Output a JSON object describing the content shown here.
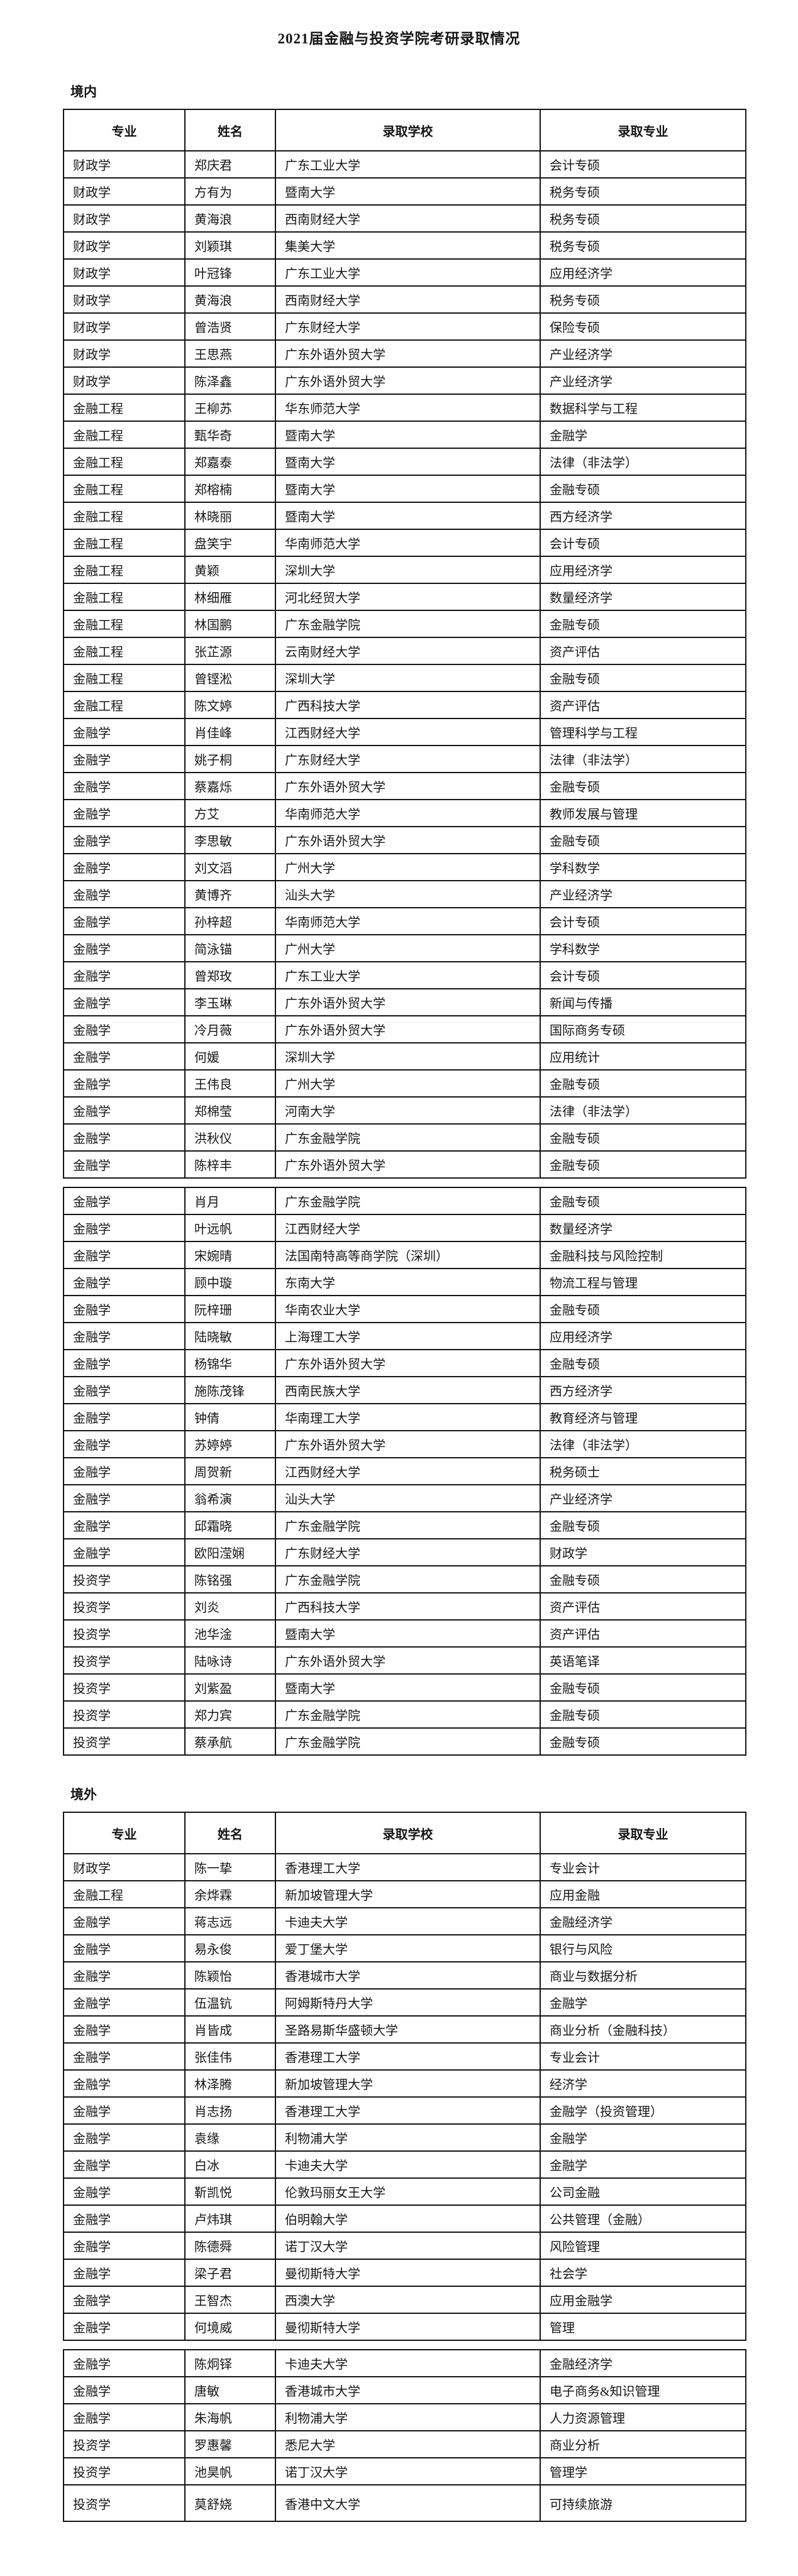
{
  "title": "2021届金融与投资学院考研录取情况",
  "sections": [
    {
      "label": "境内",
      "columns": [
        "专业",
        "姓名",
        "录取学校",
        "录取专业"
      ],
      "tables": [
        {
          "rows": [
            [
              "财政学",
              "郑庆君",
              "广东工业大学",
              "会计专硕"
            ],
            [
              "财政学",
              "方有为",
              "暨南大学",
              "税务专硕"
            ],
            [
              "财政学",
              "黄海浪",
              "西南财经大学",
              "税务专硕"
            ],
            [
              "财政学",
              "刘颖琪",
              "集美大学",
              "税务专硕"
            ],
            [
              "财政学",
              "叶冠锋",
              "广东工业大学",
              "应用经济学"
            ],
            [
              "财政学",
              "黄海浪",
              "西南财经大学",
              "税务专硕"
            ],
            [
              "财政学",
              "曾浩贤",
              "广东财经大学",
              "保险专硕"
            ],
            [
              "财政学",
              "王思燕",
              "广东外语外贸大学",
              "产业经济学"
            ],
            [
              "财政学",
              "陈泽鑫",
              "广东外语外贸大学",
              "产业经济学"
            ],
            [
              "金融工程",
              "王柳苏",
              "华东师范大学",
              "数据科学与工程"
            ],
            [
              "金融工程",
              "甄华奇",
              "暨南大学",
              "金融学"
            ],
            [
              "金融工程",
              "郑嘉泰",
              "暨南大学",
              "法律（非法学）"
            ],
            [
              "金融工程",
              "郑榕楠",
              "暨南大学",
              "金融专硕"
            ],
            [
              "金融工程",
              "林晓丽",
              "暨南大学",
              "西方经济学"
            ],
            [
              "金融工程",
              "盘笑宇",
              "华南师范大学",
              "会计专硕"
            ],
            [
              "金融工程",
              "黄颖",
              "深圳大学",
              "应用经济学"
            ],
            [
              "金融工程",
              "林细雁",
              "河北经贸大学",
              "数量经济学"
            ],
            [
              "金融工程",
              "林国鹏",
              "广东金融学院",
              "金融专硕"
            ],
            [
              "金融工程",
              "张芷源",
              "云南财经大学",
              "资产评估"
            ],
            [
              "金融工程",
              "曾铿淞",
              "深圳大学",
              "金融专硕"
            ],
            [
              "金融工程",
              "陈文婷",
              "广西科技大学",
              "资产评估"
            ],
            [
              "金融学",
              "肖佳峰",
              "江西财经大学",
              "管理科学与工程"
            ],
            [
              "金融学",
              "姚子桐",
              "广东财经大学",
              "法律（非法学）"
            ],
            [
              "金融学",
              "蔡嘉烁",
              "广东外语外贸大学",
              "金融专硕"
            ],
            [
              "金融学",
              "方艾",
              "华南师范大学",
              "教师发展与管理"
            ],
            [
              "金融学",
              "李思敏",
              "广东外语外贸大学",
              "金融专硕"
            ],
            [
              "金融学",
              "刘文滔",
              "广州大学",
              "学科数学"
            ],
            [
              "金融学",
              "黄博齐",
              "汕头大学",
              "产业经济学"
            ],
            [
              "金融学",
              "孙梓超",
              "华南师范大学",
              "会计专硕"
            ],
            [
              "金融学",
              "简泳锚",
              "广州大学",
              "学科数学"
            ],
            [
              "金融学",
              "曾郑玫",
              "广东工业大学",
              "会计专硕"
            ],
            [
              "金融学",
              "李玉琳",
              "广东外语外贸大学",
              "新闻与传播"
            ],
            [
              "金融学",
              "冷月薇",
              "广东外语外贸大学",
              "国际商务专硕"
            ],
            [
              "金融学",
              "何媛",
              "深圳大学",
              "应用统计"
            ],
            [
              "金融学",
              "王伟良",
              "广州大学",
              "金融专硕"
            ],
            [
              "金融学",
              "郑棉莹",
              "河南大学",
              "法律（非法学）"
            ],
            [
              "金融学",
              "洪秋仪",
              "广东金融学院",
              "金融专硕"
            ],
            [
              "金融学",
              "陈梓丰",
              "广东外语外贸大学",
              "金融专硕"
            ]
          ]
        },
        {
          "rows": [
            [
              "金融学",
              "肖月",
              "广东金融学院",
              "金融专硕"
            ],
            [
              "金融学",
              "叶远帆",
              "江西财经大学",
              "数量经济学"
            ],
            [
              "金融学",
              "宋婉晴",
              "法国南特高等商学院（深圳）",
              "金融科技与风险控制"
            ],
            [
              "金融学",
              "顾中璇",
              "东南大学",
              "物流工程与管理"
            ],
            [
              "金融学",
              "阮梓珊",
              "华南农业大学",
              "金融专硕"
            ],
            [
              "金融学",
              "陆晓敏",
              "上海理工大学",
              "应用经济学"
            ],
            [
              "金融学",
              "杨锦华",
              "广东外语外贸大学",
              "金融专硕"
            ],
            [
              "金融学",
              "施陈茂锋",
              "西南民族大学",
              "西方经济学"
            ],
            [
              "金融学",
              "钟倩",
              "华南理工大学",
              "教育经济与管理"
            ],
            [
              "金融学",
              "苏婷婷",
              "广东外语外贸大学",
              "法律（非法学）"
            ],
            [
              "金融学",
              "周贺新",
              "江西财经大学",
              "税务硕士"
            ],
            [
              "金融学",
              "翁希演",
              "汕头大学",
              "产业经济学"
            ],
            [
              "金融学",
              "邱霜晓",
              "广东金融学院",
              "金融专硕"
            ],
            [
              "金融学",
              "欧阳滢娴",
              "广东财经大学",
              "财政学"
            ],
            [
              "投资学",
              "陈铭强",
              "广东金融学院",
              "金融专硕"
            ],
            [
              "投资学",
              "刘炎",
              "广西科技大学",
              "资产评估"
            ],
            [
              "投资学",
              "池华淦",
              "暨南大学",
              "资产评估"
            ],
            [
              "投资学",
              "陆咏诗",
              "广东外语外贸大学",
              "英语笔译"
            ],
            [
              "投资学",
              "刘紫盈",
              "暨南大学",
              "金融专硕"
            ],
            [
              "投资学",
              "郑力宾",
              "广东金融学院",
              "金融专硕"
            ],
            [
              "投资学",
              "蔡承航",
              "广东金融学院",
              "金融专硕"
            ]
          ]
        }
      ]
    },
    {
      "label": "境外",
      "columns": [
        "专业",
        "姓名",
        "录取学校",
        "录取专业"
      ],
      "tables": [
        {
          "rows": [
            [
              "财政学",
              "陈一挚",
              "香港理工大学",
              "专业会计"
            ],
            [
              "金融工程",
              "余烨霖",
              "新加坡管理大学",
              "应用金融"
            ],
            [
              "金融学",
              "蒋志远",
              "卡迪夫大学",
              "金融经济学"
            ],
            [
              "金融学",
              "易永俊",
              "爱丁堡大学",
              "银行与风险"
            ],
            [
              "金融学",
              "陈颖怡",
              "香港城市大学",
              "商业与数据分析"
            ],
            [
              "金融学",
              "伍温钪",
              "阿姆斯特丹大学",
              "金融学"
            ],
            [
              "金融学",
              "肖皆成",
              "圣路易斯华盛顿大学",
              "商业分析（金融科技）"
            ],
            [
              "金融学",
              "张佳伟",
              "香港理工大学",
              "专业会计"
            ],
            [
              "金融学",
              "林泽腾",
              "新加坡管理大学",
              "经济学"
            ],
            [
              "金融学",
              "肖志扬",
              "香港理工大学",
              "金融学（投资管理）"
            ],
            [
              "金融学",
              "袁缘",
              "利物浦大学",
              "金融学"
            ],
            [
              "金融学",
              "白冰",
              "卡迪夫大学",
              "金融学"
            ],
            [
              "金融学",
              "靳凯悦",
              "伦敦玛丽女王大学",
              "公司金融"
            ],
            [
              "金融学",
              "卢炜琪",
              "伯明翰大学",
              "公共管理（金融）"
            ],
            [
              "金融学",
              "陈德舜",
              "诺丁汉大学",
              "风险管理"
            ],
            [
              "金融学",
              "梁子君",
              "曼彻斯特大学",
              "社会学"
            ],
            [
              "金融学",
              "王智杰",
              "西澳大学",
              "应用金融学"
            ],
            [
              "金融学",
              "何境威",
              "曼彻斯特大学",
              "管理"
            ]
          ]
        },
        {
          "rows": [
            [
              "金融学",
              "陈炯铎",
              "卡迪夫大学",
              "金融经济学"
            ],
            [
              "金融学",
              "唐敏",
              "香港城市大学",
              "电子商务&知识管理"
            ],
            [
              "金融学",
              "朱海帆",
              "利物浦大学",
              "人力资源管理"
            ],
            [
              "投资学",
              "罗惠馨",
              "悉尼大学",
              "商业分析"
            ],
            [
              "投资学",
              "池昊帆",
              "诺丁汉大学",
              "管理学"
            ],
            [
              "投资学",
              "莫舒娆",
              "香港中文大学",
              "可持续旅游"
            ]
          ]
        }
      ]
    }
  ]
}
